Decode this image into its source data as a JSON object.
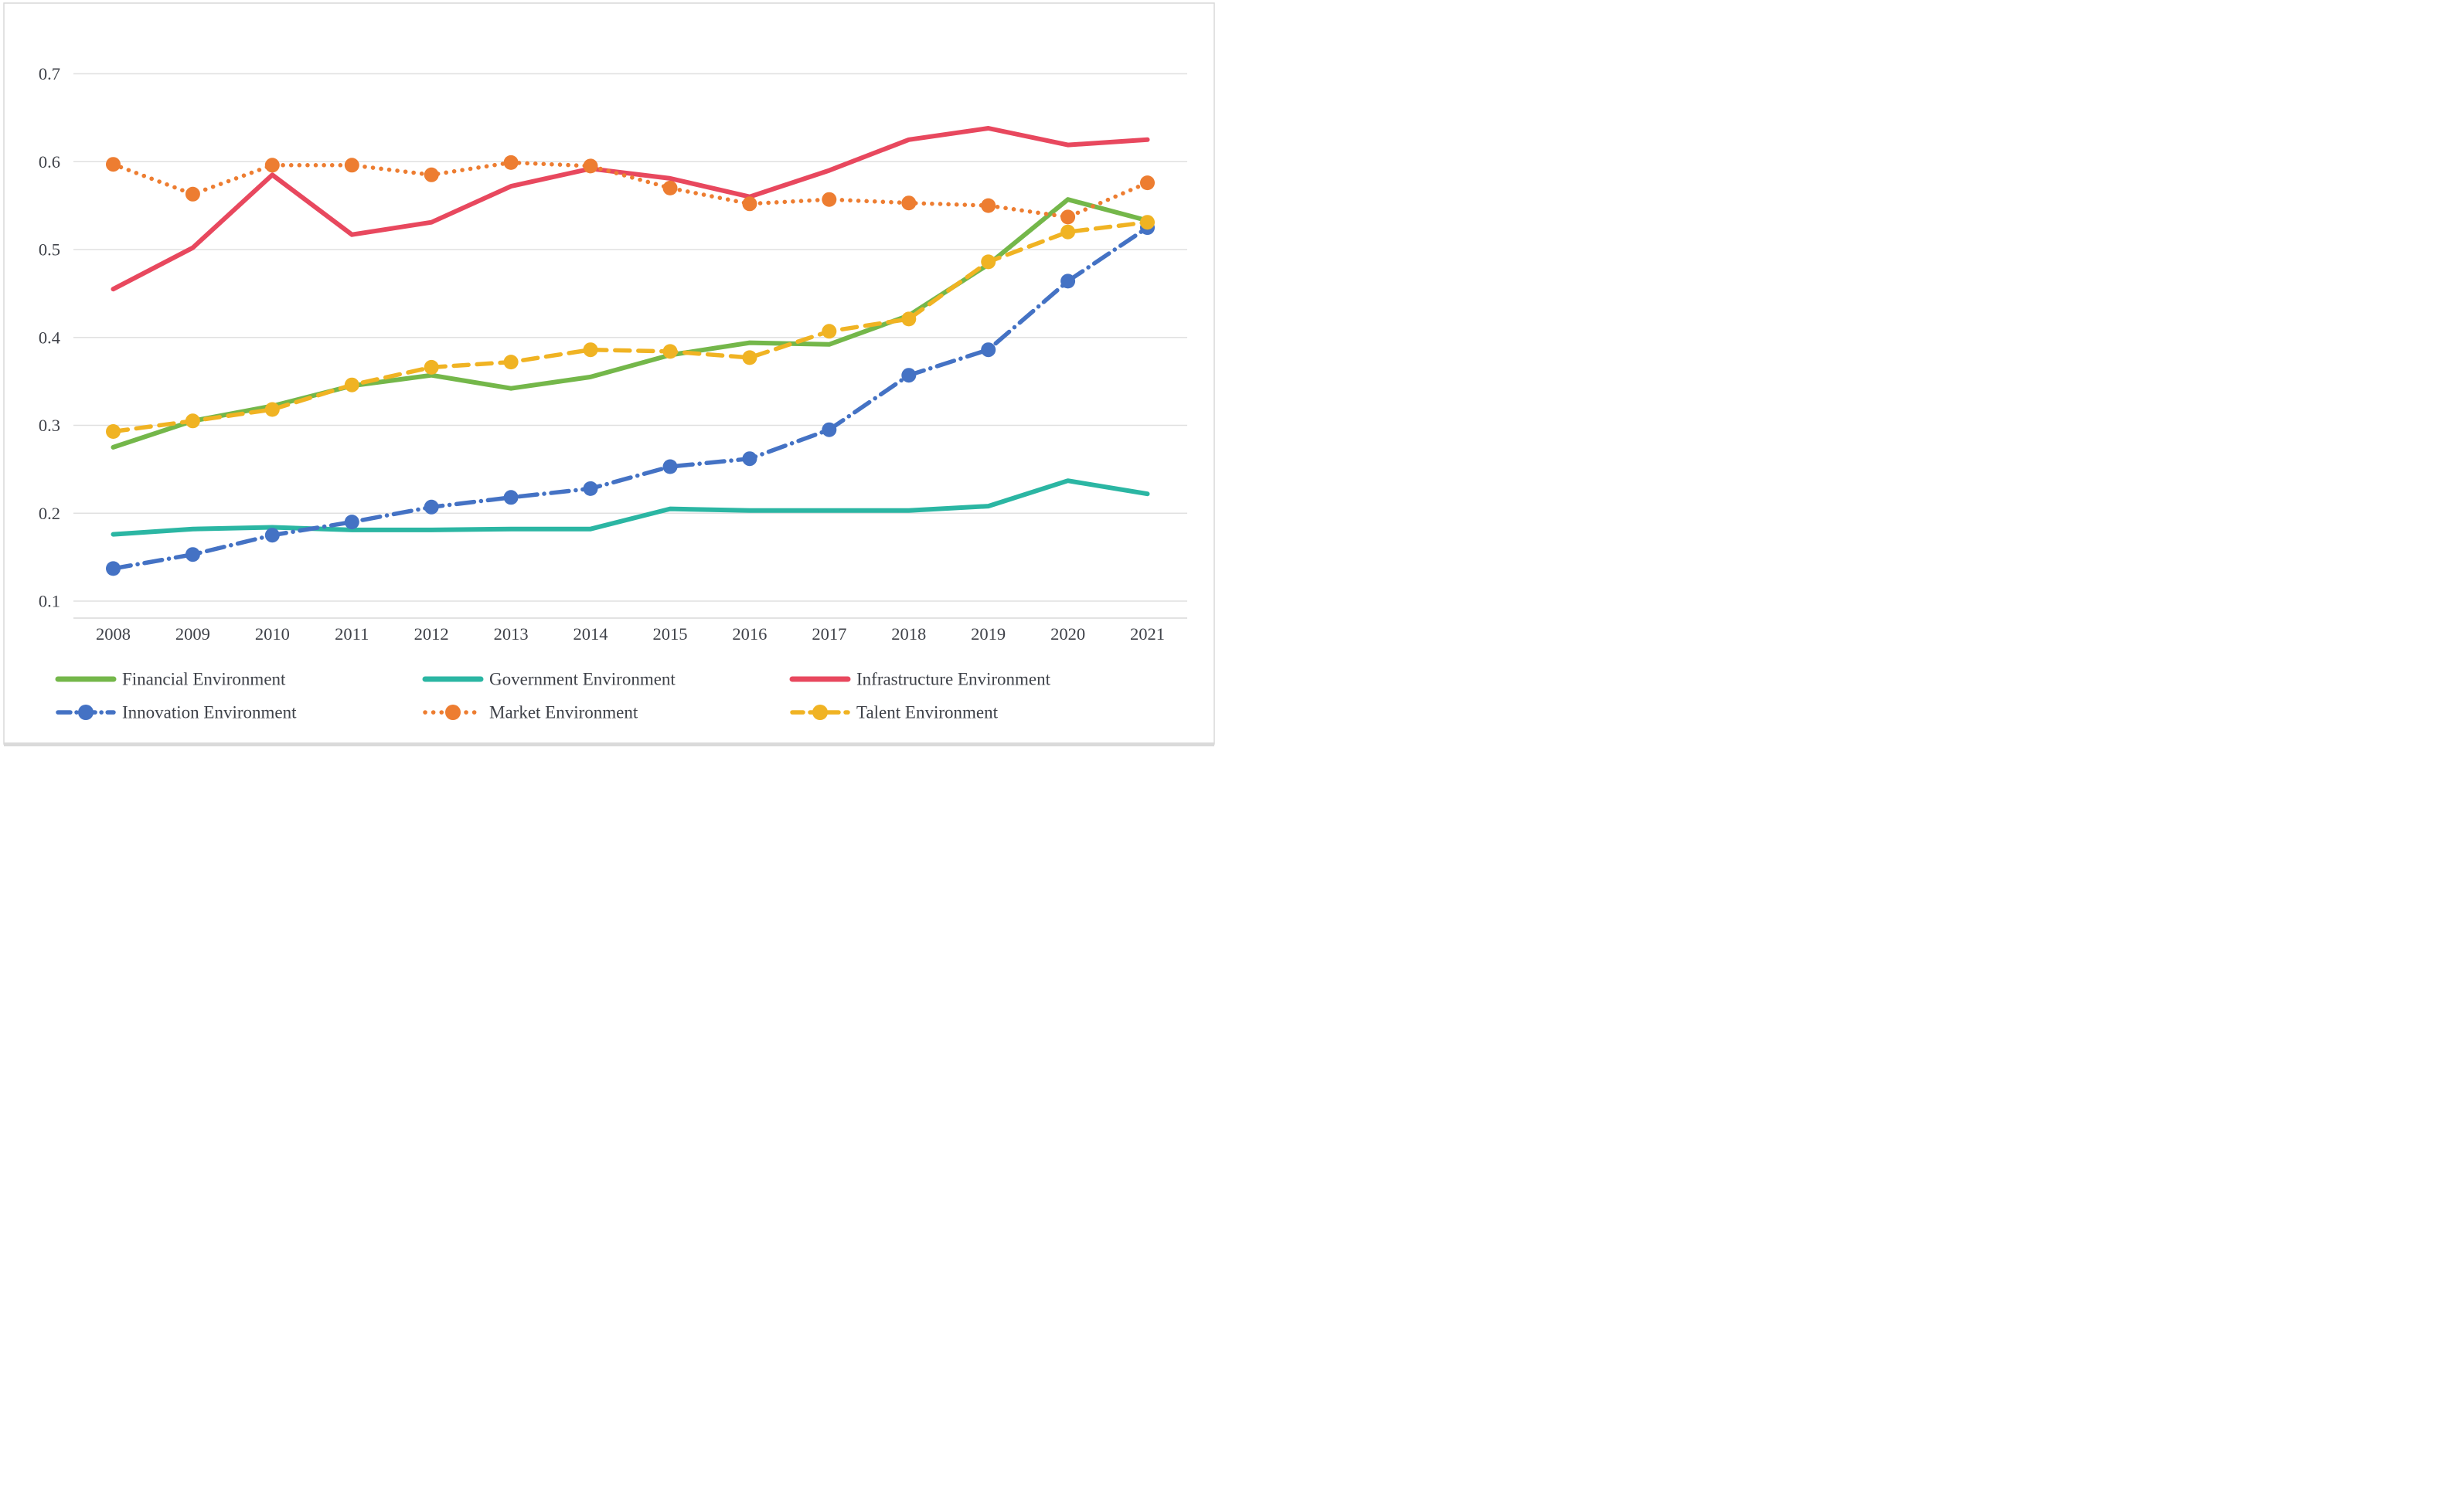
{
  "figure": {
    "background": "#ffffff",
    "border_color": "#d9d9d9",
    "gridline_color": "#e0e0e0",
    "axisline_color": "#d9d9d9",
    "text_color": "#3f4249"
  },
  "chart_data": {
    "type": "line",
    "categories": [
      "2008",
      "2009",
      "2010",
      "2011",
      "2012",
      "2013",
      "2014",
      "2015",
      "2016",
      "2017",
      "2018",
      "2019",
      "2020",
      "2021"
    ],
    "series": [
      {
        "name": "Financial Environment",
        "color": "#74b74a",
        "style": "solid",
        "marker": false,
        "values": [
          0.275,
          0.305,
          0.322,
          0.345,
          0.357,
          0.342,
          0.355,
          0.38,
          0.394,
          0.392,
          0.425,
          0.483,
          0.557,
          0.533
        ]
      },
      {
        "name": "Government Environment",
        "color": "#2bb6a3",
        "style": "solid",
        "marker": false,
        "values": [
          0.176,
          0.182,
          0.184,
          0.181,
          0.181,
          0.182,
          0.182,
          0.205,
          0.203,
          0.203,
          0.203,
          0.208,
          0.237,
          0.222
        ]
      },
      {
        "name": "Infrastructure Environment",
        "color": "#e8485e",
        "style": "solid",
        "marker": false,
        "values": [
          0.455,
          0.502,
          0.585,
          0.517,
          0.531,
          0.572,
          0.592,
          0.581,
          0.56,
          0.59,
          0.625,
          0.638,
          0.619,
          0.625
        ]
      },
      {
        "name": "Innovation Environment",
        "color": "#4472c4",
        "style": "dashdot",
        "marker": true,
        "values": [
          0.137,
          0.153,
          0.175,
          0.19,
          0.207,
          0.218,
          0.228,
          0.253,
          0.262,
          0.295,
          0.357,
          0.386,
          0.464,
          0.525
        ]
      },
      {
        "name": "Market Environment",
        "color": "#ed7d31",
        "style": "dotted",
        "marker": true,
        "values": [
          0.597,
          0.563,
          0.596,
          0.596,
          0.585,
          0.599,
          0.595,
          0.57,
          0.552,
          0.557,
          0.553,
          0.55,
          0.537,
          0.576
        ]
      },
      {
        "name": "Talent Environment",
        "color": "#f0b323",
        "style": "dashed",
        "marker": true,
        "values": [
          0.293,
          0.305,
          0.318,
          0.346,
          0.366,
          0.372,
          0.386,
          0.384,
          0.377,
          0.407,
          0.421,
          0.486,
          0.52,
          0.531
        ]
      }
    ],
    "ylim": [
      0.1,
      0.7
    ],
    "yticks": [
      "0.1",
      "0.2",
      "0.3",
      "0.4",
      "0.5",
      "0.6",
      "0.7"
    ],
    "ytick_values": [
      0.1,
      0.2,
      0.3,
      0.4,
      0.5,
      0.6,
      0.7
    ],
    "grid": true,
    "legend_position": "bottom",
    "legend_rows": [
      [
        0,
        1,
        2
      ],
      [
        3,
        4,
        5
      ]
    ]
  }
}
